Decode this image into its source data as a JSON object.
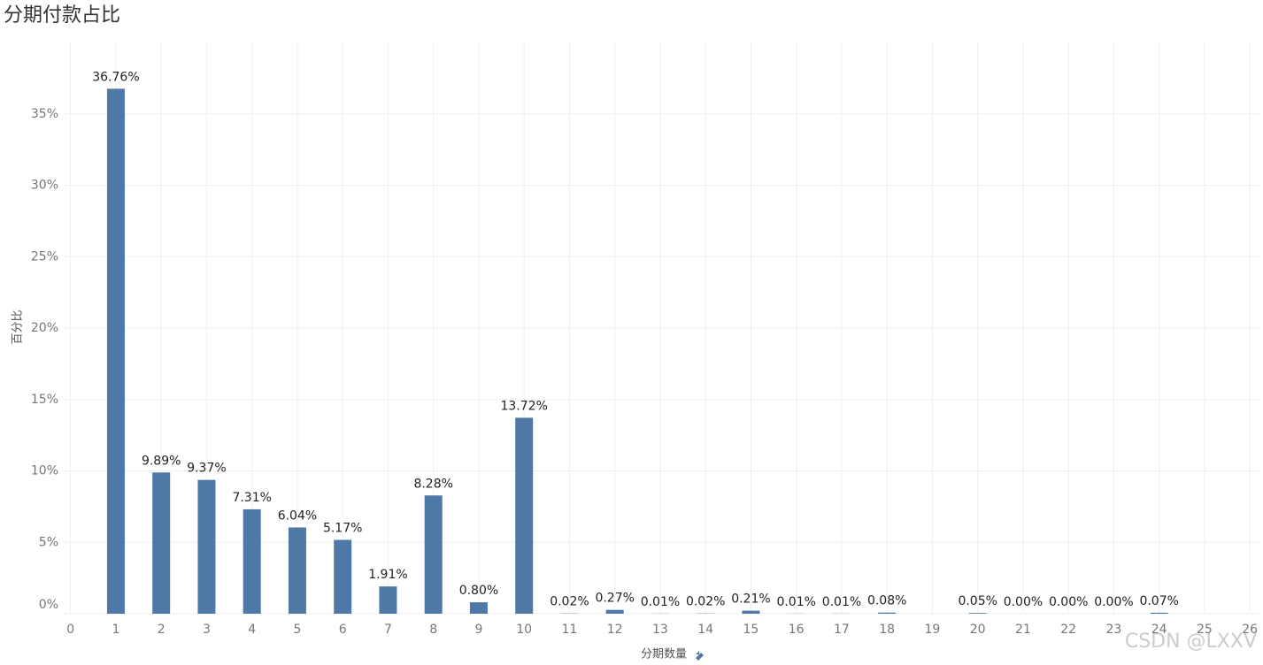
{
  "chart_data": {
    "type": "bar",
    "title": "分期付款占比",
    "x_label": "分期数量",
    "y_label": "百分比",
    "watermark": "CSDN @LXXV",
    "x": [
      1,
      2,
      3,
      4,
      5,
      6,
      7,
      8,
      9,
      10,
      11,
      12,
      13,
      14,
      15,
      16,
      17,
      18,
      20,
      21,
      22,
      23,
      24
    ],
    "values": [
      36.76,
      9.89,
      9.37,
      7.31,
      6.04,
      5.17,
      1.91,
      8.28,
      0.8,
      13.72,
      0.02,
      0.27,
      0.01,
      0.02,
      0.21,
      0.01,
      0.01,
      0.08,
      0.05,
      0.0,
      0.0,
      0.0,
      0.07
    ],
    "value_labels": [
      "36.76%",
      "9.89%",
      "9.37%",
      "7.31%",
      "6.04%",
      "5.17%",
      "1.91%",
      "8.28%",
      "0.80%",
      "13.72%",
      "0.02%",
      "0.27%",
      "0.01%",
      "0.02%",
      "0.21%",
      "0.01%",
      "0.01%",
      "0.08%",
      "0.05%",
      "0.00%",
      "0.00%",
      "0.00%",
      "0.07%"
    ],
    "color": "#4e79a7",
    "xlim": [
      -0.15,
      26.25
    ],
    "xticks": [
      0,
      1,
      2,
      3,
      4,
      5,
      6,
      7,
      8,
      9,
      10,
      11,
      12,
      13,
      14,
      15,
      16,
      17,
      18,
      19,
      20,
      21,
      22,
      23,
      24,
      25,
      26
    ],
    "ylim": [
      0,
      40
    ],
    "yticks": [
      {
        "value": 0,
        "label": "0%"
      },
      {
        "value": 5,
        "label": "5%"
      },
      {
        "value": 10,
        "label": "10%"
      },
      {
        "value": 15,
        "label": "15%"
      },
      {
        "value": 20,
        "label": "20%"
      },
      {
        "value": 25,
        "label": "25%"
      },
      {
        "value": 30,
        "label": "30%"
      },
      {
        "value": 35,
        "label": "35%"
      }
    ],
    "grid": true
  }
}
